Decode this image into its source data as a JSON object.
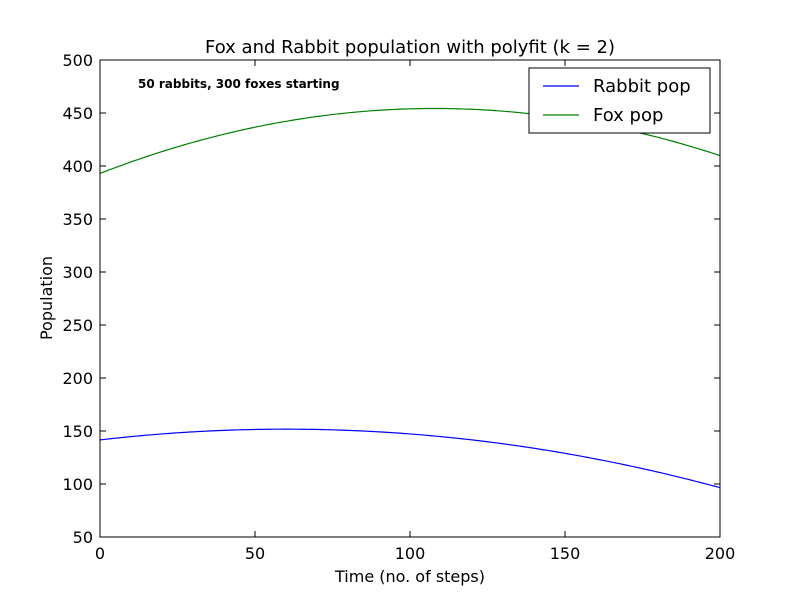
{
  "chart_data": {
    "type": "line",
    "title": "Fox and Rabbit population with polyfit (k = 2)",
    "xlabel": "Time (no. of steps)",
    "ylabel": "Population",
    "xlim": [
      0,
      200
    ],
    "ylim": [
      50,
      500
    ],
    "x_ticks": [
      0,
      50,
      100,
      150,
      200
    ],
    "y_ticks": [
      50,
      100,
      150,
      200,
      250,
      300,
      350,
      400,
      450,
      500
    ],
    "grid": false,
    "legend": "top-right",
    "annotation": "50 rabbits, 300 foxes starting",
    "colors": {
      "rabbit": "#0000ff",
      "fox": "#008000"
    },
    "series": [
      {
        "name": "Rabbit pop",
        "color": "#0000ff",
        "coefficients": [
          -0.002815,
          0.3378,
          141.6
        ]
      },
      {
        "name": "Fox pop",
        "color": "#008000",
        "coefficients": [
          -0.005253,
          1.1346,
          393.0
        ]
      }
    ]
  }
}
